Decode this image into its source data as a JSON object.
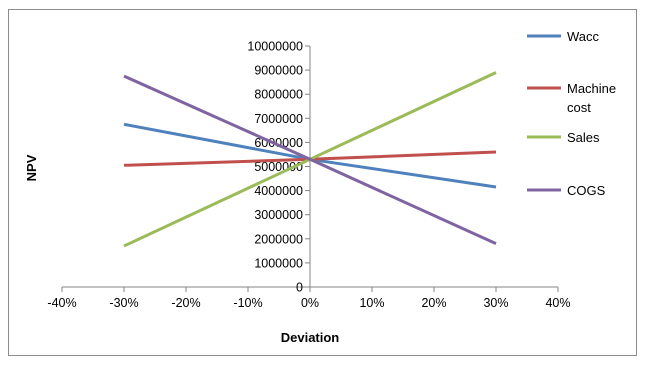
{
  "chart_data": {
    "type": "line",
    "title": "",
    "xlabel": "Deviation",
    "ylabel": "NPV",
    "x": [
      -0.3,
      0,
      0.3
    ],
    "xlim": [
      -0.4,
      0.4
    ],
    "ylim": [
      0,
      10000000
    ],
    "x_ticks": [
      "-40%",
      "-30%",
      "-20%",
      "-10%",
      "0%",
      "10%",
      "20%",
      "30%",
      "40%"
    ],
    "y_ticks": [
      "0",
      "1000000",
      "2000000",
      "3000000",
      "4000000",
      "5000000",
      "6000000",
      "7000000",
      "8000000",
      "9000000",
      "10000000"
    ],
    "grid": false,
    "legend_position": "right",
    "series": [
      {
        "name": "Wacc",
        "color": "#4f81bd",
        "values": [
          6750000,
          5300000,
          4150000
        ]
      },
      {
        "name": "Machine cost",
        "name_lines": [
          "Machine",
          "cost"
        ],
        "color": "#c0504d",
        "values": [
          5050000,
          5300000,
          5600000
        ]
      },
      {
        "name": "Sales",
        "color": "#9bbb59",
        "values": [
          1700000,
          5300000,
          8900000
        ]
      },
      {
        "name": "COGS",
        "color": "#8064a2",
        "values": [
          8750000,
          5300000,
          1800000
        ]
      }
    ]
  }
}
